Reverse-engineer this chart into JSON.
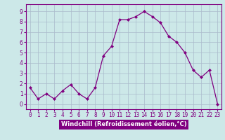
{
  "x": [
    0,
    1,
    2,
    3,
    4,
    5,
    6,
    7,
    8,
    9,
    10,
    11,
    12,
    13,
    14,
    15,
    16,
    17,
    18,
    19,
    20,
    21,
    22,
    23
  ],
  "y": [
    1.6,
    0.5,
    1.0,
    0.5,
    1.3,
    1.9,
    1.0,
    0.5,
    1.6,
    4.7,
    5.6,
    8.2,
    8.2,
    8.5,
    9.0,
    8.5,
    7.9,
    6.6,
    6.0,
    5.0,
    3.3,
    2.6,
    3.3,
    0.0
  ],
  "line_color": "#800080",
  "marker": "D",
  "marker_size": 2.0,
  "bg_color": "#cce8e8",
  "grid_color": "#aabbcc",
  "xlabel": "Windchill (Refroidissement éolien,°C)",
  "xlim": [
    -0.5,
    23.5
  ],
  "ylim": [
    -0.5,
    9.7
  ],
  "xticks": [
    0,
    1,
    2,
    3,
    4,
    5,
    6,
    7,
    8,
    9,
    10,
    11,
    12,
    13,
    14,
    15,
    16,
    17,
    18,
    19,
    20,
    21,
    22,
    23
  ],
  "yticks": [
    0,
    1,
    2,
    3,
    4,
    5,
    6,
    7,
    8,
    9
  ],
  "xlabel_bg": "#800080",
  "tick_color": "#800080",
  "tick_fontsize": 5.5,
  "xlabel_fontsize": 6.0,
  "line_width": 0.9
}
